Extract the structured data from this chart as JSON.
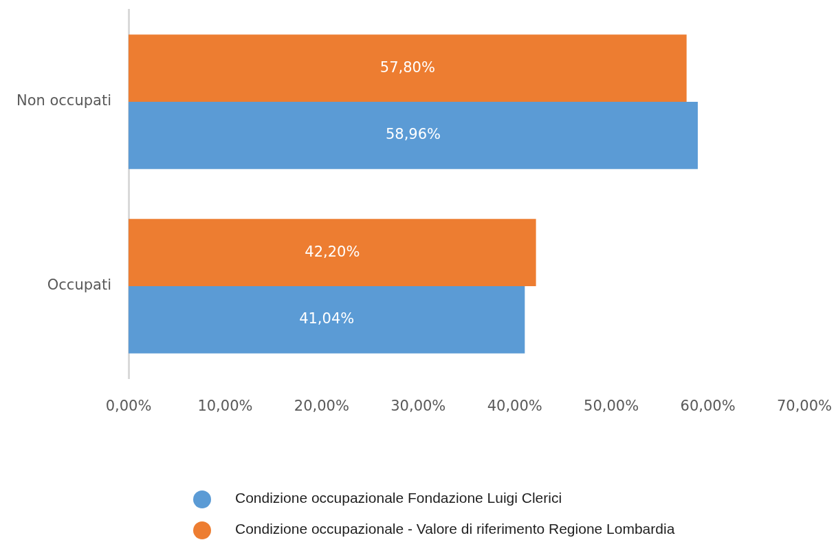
{
  "chart_data": {
    "type": "bar",
    "orientation": "horizontal",
    "categories": [
      "Non occupati",
      "Occupati"
    ],
    "series": [
      {
        "name": "Condizione occupazionale Fondazione Luigi Clerici",
        "color": "#5b9bd5",
        "values": [
          58.96,
          41.04
        ],
        "value_labels": [
          "58,96%",
          "41,04%"
        ]
      },
      {
        "name": "Condizione occupazionale - Valore di riferimento Regione Lombardia",
        "color": "#ed7d31",
        "values": [
          57.8,
          42.2
        ],
        "value_labels": [
          "57,80%",
          "42,20%"
        ]
      }
    ],
    "xlim": [
      0,
      70
    ],
    "xticks": [
      {
        "value": 0,
        "label": "0,00%"
      },
      {
        "value": 10,
        "label": "10,00%"
      },
      {
        "value": 20,
        "label": "20,00%"
      },
      {
        "value": 30,
        "label": "30,00%"
      },
      {
        "value": 40,
        "label": "40,00%"
      },
      {
        "value": 50,
        "label": "50,00%"
      },
      {
        "value": 60,
        "label": "60,00%"
      },
      {
        "value": 70,
        "label": "70,00%"
      }
    ],
    "legend": "bottom"
  }
}
